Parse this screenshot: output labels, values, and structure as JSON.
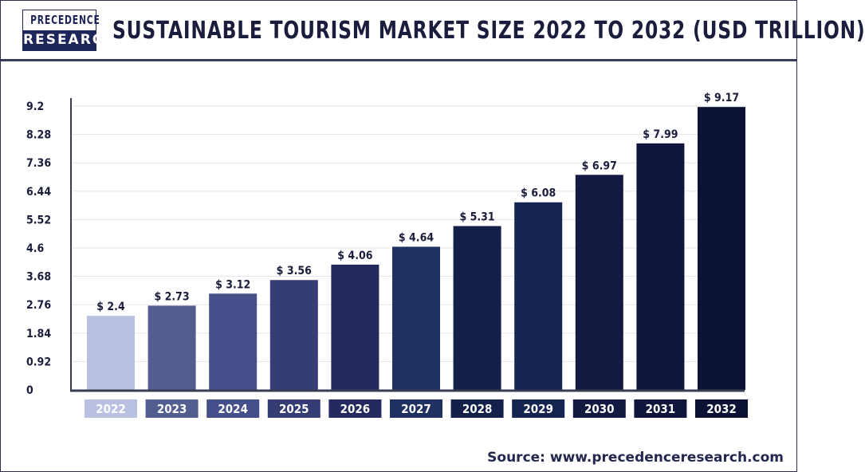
{
  "logo": {
    "line1": "PRECEDENCE",
    "line2": "RESEARCH"
  },
  "source": "Source: www.precedenceresearch.com",
  "colors": {
    "bars": [
      "#b9c1e2",
      "#535d8f",
      "#454f89",
      "#363d75",
      "#242a60",
      "#1e3160",
      "#14204a",
      "#162450",
      "#121a42",
      "#0f153b",
      "#0c1233"
    ],
    "axis": "#3a3d52",
    "grid": "#e4e4ea"
  },
  "chart_data": {
    "type": "bar",
    "title": "SUSTAINABLE TOURISM MARKET SIZE 2022 TO 2032 (USD TRILLION)",
    "categories": [
      "2022",
      "2023",
      "2024",
      "2025",
      "2026",
      "2027",
      "2028",
      "2029",
      "2030",
      "2031",
      "2032"
    ],
    "values": [
      2.4,
      2.73,
      3.12,
      3.56,
      4.06,
      4.64,
      5.31,
      6.08,
      6.97,
      7.99,
      9.17
    ],
    "data_labels": [
      "$ 2.4",
      "$ 2.73",
      "$ 3.12",
      "$ 3.56",
      "$ 4.06",
      "$ 4.64",
      "$ 5.31",
      "$ 6.08",
      "$ 6.97",
      "$ 7.99",
      "$ 9.17"
    ],
    "yticks": [
      "0",
      "0.92",
      "1.84",
      "2.76",
      "3.68",
      "4.6",
      "5.52",
      "6.44",
      "7.36",
      "8.28",
      "9.2"
    ],
    "ylim": [
      0,
      9.2
    ],
    "grid": true,
    "xlabel": "",
    "ylabel": ""
  }
}
